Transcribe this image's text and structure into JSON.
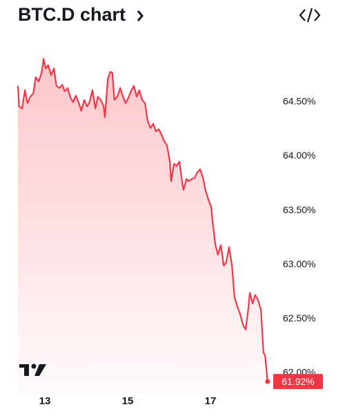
{
  "chart_data": {
    "type": "line",
    "title": "BTC.D chart",
    "x": [
      12.35,
      12.38,
      12.45,
      12.52,
      12.58,
      12.65,
      12.72,
      12.78,
      12.85,
      12.92,
      12.97,
      13.02,
      13.08,
      13.15,
      13.22,
      13.28,
      13.35,
      13.42,
      13.48,
      13.55,
      13.62,
      13.68,
      13.75,
      13.82,
      13.88,
      13.95,
      14.02,
      14.08,
      14.15,
      14.22,
      14.28,
      14.35,
      14.42,
      14.45,
      14.52,
      14.58,
      14.63,
      14.68,
      14.75,
      14.82,
      14.88,
      14.95,
      15.02,
      15.08,
      15.15,
      15.22,
      15.28,
      15.35,
      15.42,
      15.48,
      15.55,
      15.62,
      15.68,
      15.75,
      15.82,
      15.88,
      15.95,
      16.02,
      16.05,
      16.12,
      16.18,
      16.25,
      16.32,
      16.35,
      16.42,
      16.48,
      16.55,
      16.62,
      16.68,
      16.75,
      16.82,
      16.88,
      16.95,
      17.02,
      17.05,
      17.12,
      17.18,
      17.25,
      17.32,
      17.38,
      17.45,
      17.52,
      17.58,
      17.65,
      17.72,
      17.78,
      17.85,
      17.92,
      17.95,
      18.02,
      18.08,
      18.15,
      18.22,
      18.28,
      18.32,
      18.38
    ],
    "values": [
      64.65,
      64.46,
      64.44,
      64.61,
      64.49,
      64.55,
      64.58,
      64.73,
      64.69,
      64.77,
      64.9,
      64.81,
      64.84,
      64.75,
      64.81,
      64.65,
      64.63,
      64.66,
      64.6,
      64.63,
      64.54,
      64.5,
      64.56,
      64.49,
      64.42,
      64.52,
      64.46,
      64.5,
      64.61,
      64.44,
      64.55,
      64.52,
      64.46,
      64.36,
      64.71,
      64.78,
      64.77,
      64.52,
      64.55,
      64.63,
      64.56,
      64.49,
      64.54,
      64.6,
      64.65,
      64.55,
      64.61,
      64.52,
      64.49,
      64.33,
      64.26,
      64.3,
      64.23,
      64.25,
      64.2,
      64.14,
      64.1,
      63.95,
      63.77,
      63.93,
      63.91,
      63.95,
      63.75,
      63.69,
      63.79,
      63.77,
      63.79,
      63.8,
      63.85,
      63.88,
      63.8,
      63.69,
      63.6,
      63.53,
      63.4,
      63.18,
      63.09,
      63.18,
      62.99,
      63.02,
      63.16,
      62.99,
      62.7,
      62.61,
      62.54,
      62.45,
      62.4,
      62.61,
      62.74,
      62.64,
      62.72,
      62.67,
      62.58,
      62.19,
      62.16,
      61.92
    ],
    "value_labels": {
      "95": "61.92%"
    },
    "color": "#f23645",
    "xlim": [
      12.35,
      18.55
    ],
    "xticks": [
      13,
      15,
      17
    ],
    "ylim": [
      61.8,
      65.1
    ],
    "yticks": [
      {
        "value": 64.5,
        "label": "64.50%"
      },
      {
        "value": 64.0,
        "label": "64.00%"
      },
      {
        "value": 63.5,
        "label": "63.50%"
      },
      {
        "value": 63.0,
        "label": "63.00%"
      },
      {
        "value": 62.5,
        "label": "62.50%"
      },
      {
        "value": 62.0,
        "label": "62.00%"
      }
    ]
  }
}
